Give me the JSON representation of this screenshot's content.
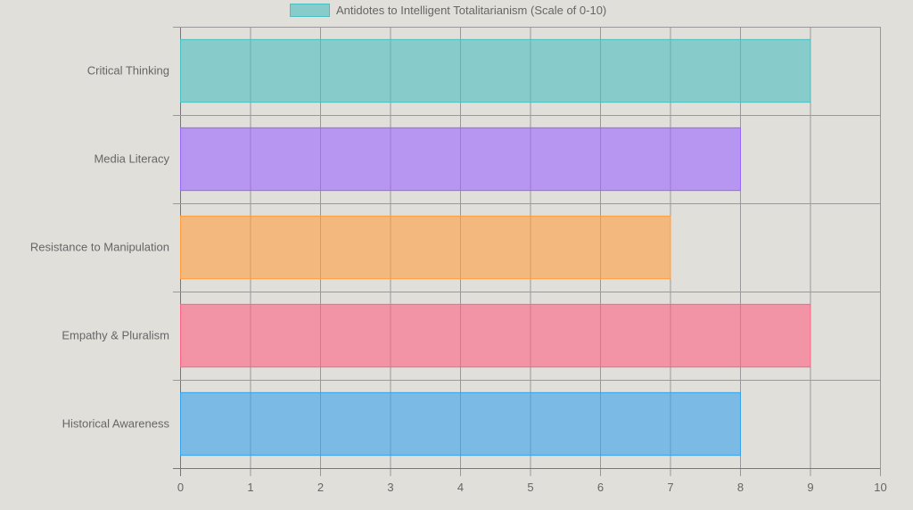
{
  "chart_data": {
    "type": "bar",
    "orientation": "horizontal",
    "categories": [
      "Critical Thinking",
      "Media Literacy",
      "Resistance to Manipulation",
      "Empathy & Pluralism",
      "Historical Awareness"
    ],
    "series": [
      {
        "name": "Antidotes to Intelligent Totalitarianism (Scale of 0-10)",
        "values": [
          9,
          8,
          7,
          9,
          8
        ]
      }
    ],
    "colors": [
      "#4bc0c0",
      "#9966ff",
      "#ff9f40",
      "#ff6384",
      "#36a2eb"
    ],
    "xlim": [
      0,
      10
    ],
    "xticks": [
      "0",
      "1",
      "2",
      "3",
      "4",
      "5",
      "6",
      "7",
      "8",
      "9",
      "10"
    ],
    "grid": true,
    "legend_position": "top",
    "title": "",
    "xlabel": "",
    "ylabel": ""
  }
}
